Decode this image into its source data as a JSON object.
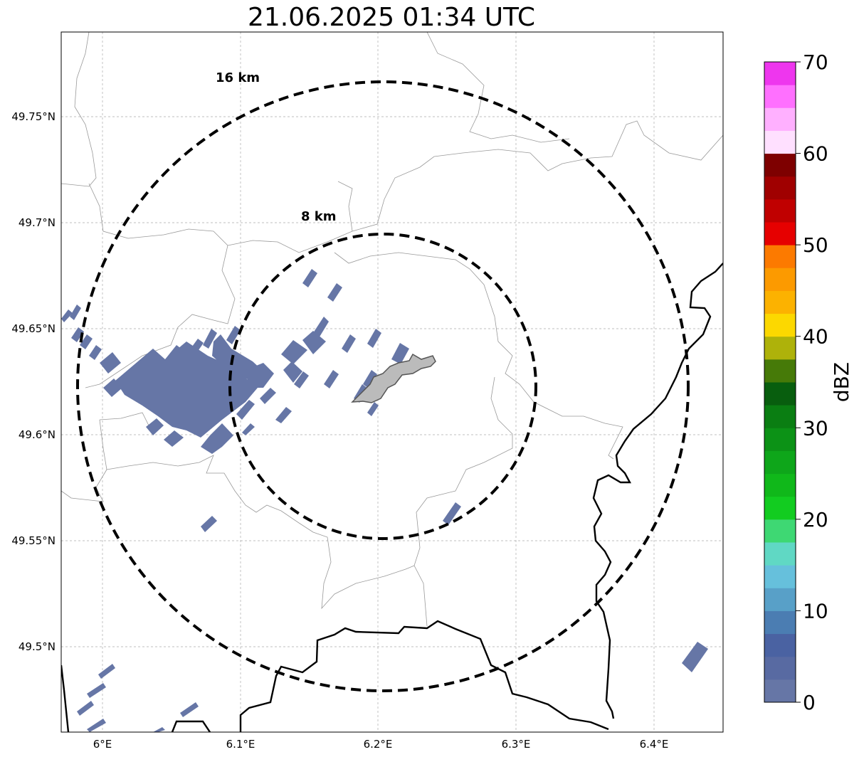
{
  "title": "21.06.2025 01:34 UTC",
  "range_rings": [
    {
      "label": "16 km",
      "radius_km": 16
    },
    {
      "label": "8 km",
      "radius_km": 8
    }
  ],
  "latitude_ticks": [
    "49.75°N",
    "49.7°N",
    "49.65°N",
    "49.6°N",
    "49.55°N",
    "49.5°N"
  ],
  "longitude_ticks": [
    "6°E",
    "6.1°E",
    "6.2°E",
    "6.3°E",
    "6.4°E"
  ],
  "colorbar": {
    "label": "dBZ",
    "tick_labels": [
      "0",
      "10",
      "20",
      "30",
      "40",
      "50",
      "60",
      "70"
    ],
    "min": 0,
    "max": 70,
    "colors": [
      "#6676a6",
      "#586aa2",
      "#4a62a2",
      "#4b7db2",
      "#58a0c8",
      "#66c0dc",
      "#60d8c4",
      "#3ed873",
      "#12cc20",
      "#10b81a",
      "#0ea61a",
      "#0c9216",
      "#0a7e12",
      "#085e0e",
      "#467a08",
      "#aeb20a",
      "#fcd800",
      "#fcb200",
      "#fc9a00",
      "#fc7a00",
      "#e60000",
      "#c00000",
      "#a00000",
      "#7e0000",
      "#ffe0ff",
      "#ffb0ff",
      "#ff70ff",
      "#ee36ee"
    ]
  },
  "colors": {
    "echo": "#6676a6",
    "ring": "#000000",
    "border": "#000000",
    "gridline": "#aaaaaa",
    "city_fill": "#bbbbbb"
  }
}
